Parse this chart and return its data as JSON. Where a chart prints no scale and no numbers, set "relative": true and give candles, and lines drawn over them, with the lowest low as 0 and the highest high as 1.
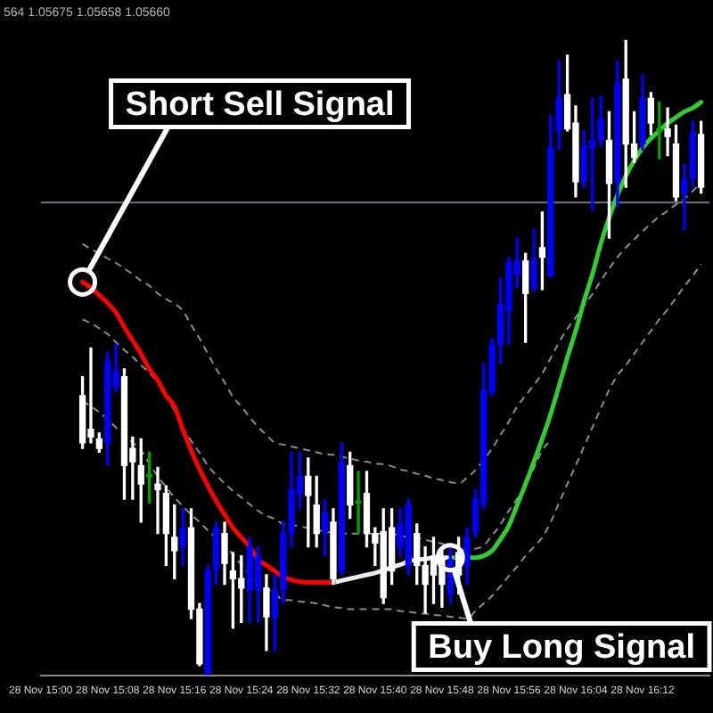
{
  "chart_data": {
    "type": "candlestick",
    "title": "564 1.05675 1.05658 1.05660",
    "relative": true,
    "x": [
      "--11-28T15:05",
      "--11-28T15:06",
      "--11-28T15:07",
      "--11-28T15:08",
      "--11-28T15:09",
      "--11-28T15:10",
      "--11-28T15:11",
      "--11-28T15:12",
      "--11-28T15:13",
      "--11-28T15:14",
      "--11-28T15:15",
      "--11-28T15:16",
      "--11-28T15:17",
      "--11-28T15:18",
      "--11-28T15:19",
      "--11-28T15:20",
      "--11-28T15:21",
      "--11-28T15:22",
      "--11-28T15:23",
      "--11-28T15:24",
      "--11-28T15:25",
      "--11-28T15:26",
      "--11-28T15:27",
      "--11-28T15:28",
      "--11-28T15:29",
      "--11-28T15:30",
      "--11-28T15:31",
      "--11-28T15:32",
      "--11-28T15:33",
      "--11-28T15:34",
      "--11-28T15:35",
      "--11-28T15:36",
      "--11-28T15:37",
      "--11-28T15:38",
      "--11-28T15:39",
      "--11-28T15:40",
      "--11-28T15:41",
      "--11-28T15:42",
      "--11-28T15:43",
      "--11-28T15:44",
      "--11-28T15:45",
      "--11-28T15:46",
      "--11-28T15:47",
      "--11-28T15:48",
      "--11-28T15:49",
      "--11-28T15:50",
      "--11-28T15:51",
      "--11-28T15:52",
      "--11-28T15:53",
      "--11-28T15:54",
      "--11-28T15:55",
      "--11-28T15:56",
      "--11-28T15:57",
      "--11-28T15:58",
      "--11-28T15:59",
      "--11-28T16:00",
      "--11-28T16:01",
      "--11-28T16:02",
      "--11-28T16:03",
      "--11-28T16:04",
      "--11-28T16:05",
      "--11-28T16:06",
      "--11-28T16:07",
      "--11-28T16:08",
      "--11-28T16:09",
      "--11-28T16:10",
      "--11-28T16:11",
      "--11-28T16:12",
      "--11-28T16:13",
      "--11-28T16:14",
      "--11-28T16:15",
      "--11-28T16:16",
      "--11-28T16:17",
      "--11-28T16:18",
      "--11-28T16:19"
    ],
    "ohlc": [
      [
        0.44,
        0.47,
        0.357,
        0.366
      ],
      [
        0.387,
        0.515,
        0.366,
        0.375
      ],
      [
        0.372,
        0.381,
        0.351,
        0.357
      ],
      [
        0.366,
        0.509,
        0.33,
        0.494
      ],
      [
        0.455,
        0.521,
        0.446,
        0.479
      ],
      [
        0.47,
        0.482,
        0.277,
        0.33
      ],
      [
        0.357,
        0.375,
        0.277,
        0.336
      ],
      [
        0.33,
        0.372,
        0.241,
        0.301
      ],
      [
        0.313,
        0.351,
        0.271,
        0.313
      ],
      [
        0.301,
        0.327,
        0.223,
        0.292
      ],
      [
        0.286,
        0.298,
        0.173,
        0.223
      ],
      [
        0.217,
        0.268,
        0.152,
        0.196
      ],
      [
        0.202,
        0.262,
        0.173,
        0.232
      ],
      [
        0.232,
        0.262,
        0.089,
        0.104
      ],
      [
        0.104,
        0.113,
        0.015,
        0.018
      ],
      [
        0.003,
        0.173,
        0,
        0.164
      ],
      [
        0.167,
        0.241,
        0.143,
        0.232
      ],
      [
        0.223,
        0.241,
        0.143,
        0.176
      ],
      [
        0.164,
        0.193,
        0.074,
        0.152
      ],
      [
        0.152,
        0.188,
        0.083,
        0.137
      ],
      [
        0.134,
        0.217,
        0.083,
        0.202
      ],
      [
        0.134,
        0.202,
        0.083,
        0.188
      ],
      [
        0.137,
        0.158,
        0.039,
        0.092
      ],
      [
        0.092,
        0.158,
        0.039,
        0.134
      ],
      [
        0.134,
        0.241,
        0.113,
        0.223
      ],
      [
        0.223,
        0.351,
        0.202,
        0.292
      ],
      [
        0.286,
        0.351,
        0.262,
        0.313
      ],
      [
        0.313,
        0.342,
        0.202,
        0.283
      ],
      [
        0.268,
        0.313,
        0.202,
        0.223
      ],
      [
        0.226,
        0.277,
        0.188,
        0.256
      ],
      [
        0.241,
        0.262,
        0.143,
        0.152
      ],
      [
        0.164,
        0.366,
        0.158,
        0.336
      ],
      [
        0.33,
        0.351,
        0.247,
        0.268
      ],
      [
        0.271,
        0.321,
        0.223,
        0.271
      ],
      [
        0.286,
        0.321,
        0.202,
        0.223
      ],
      [
        0.223,
        0.232,
        0.173,
        0.208
      ],
      [
        0.226,
        0.262,
        0.113,
        0.122
      ],
      [
        0.232,
        0.262,
        0.143,
        0.164
      ],
      [
        0.202,
        0.262,
        0.188,
        0.238
      ],
      [
        0.173,
        0.277,
        0.158,
        0.268
      ],
      [
        0.223,
        0.238,
        0.143,
        0.173
      ],
      [
        0.173,
        0.202,
        0.098,
        0.143
      ],
      [
        0.188,
        0.217,
        0.113,
        0.158
      ],
      [
        0.182,
        0.202,
        0.107,
        0.143
      ],
      [
        0.128,
        0.202,
        0.113,
        0.182
      ],
      [
        0.193,
        0.217,
        0.128,
        0.158
      ],
      [
        0.173,
        0.232,
        0.143,
        0.217
      ],
      [
        0.226,
        0.292,
        0.217,
        0.277
      ],
      [
        0.271,
        0.491,
        0.262,
        0.449
      ],
      [
        0.446,
        0.53,
        0.44,
        0.521
      ],
      [
        0.521,
        0.625,
        0.491,
        0.583
      ],
      [
        0.574,
        0.658,
        0.521,
        0.649
      ],
      [
        0.631,
        0.688,
        0.61,
        0.652
      ],
      [
        0.652,
        0.664,
        0.524,
        0.601
      ],
      [
        0.61,
        0.702,
        0.604,
        0.655
      ],
      [
        0.673,
        0.729,
        0.607,
        0.658
      ],
      [
        0.628,
        0.881,
        0.628,
        0.83
      ],
      [
        0.857,
        0.967,
        0.827,
        0.908
      ],
      [
        0.914,
        0.976,
        0.857,
        0.86
      ],
      [
        0.869,
        0.896,
        0.753,
        0.777
      ],
      [
        0.777,
        0.857,
        0.768,
        0.833
      ],
      [
        0.83,
        0.908,
        0.732,
        0.842
      ],
      [
        0.842,
        0.911,
        0.833,
        0.875
      ],
      [
        0.842,
        0.887,
        0.688,
        0.774
      ],
      [
        0.777,
        0.967,
        0.738,
        0.932
      ],
      [
        0.938,
        1,
        0.768,
        0.836
      ],
      [
        0.836,
        0.887,
        0.807,
        0.815
      ],
      [
        0.836,
        0.946,
        0.827,
        0.908
      ],
      [
        0.908,
        0.917,
        0.851,
        0.869
      ],
      [
        0.857,
        0.902,
        0.813,
        0.857
      ],
      [
        0.86,
        0.893,
        0.818,
        0.848
      ],
      [
        0.836,
        0.866,
        0.747,
        0.753
      ],
      [
        0.759,
        0.804,
        0.702,
        0.78
      ],
      [
        0.783,
        0.872,
        0.768,
        0.854
      ],
      [
        0.851,
        0.872,
        0.759,
        0.768
      ]
    ],
    "colors": [
      "#ffffff",
      "#ffffff",
      "#ffffff",
      "#0000ff",
      "#0000ff",
      "#ffffff",
      "#ffffff",
      "#ffffff",
      "#00a000",
      "#ffffff",
      "#ffffff",
      "#ffffff",
      "#0000ff",
      "#ffffff",
      "#ffffff",
      "#0000ff",
      "#0000ff",
      "#ffffff",
      "#ffffff",
      "#ffffff",
      "#0000ff",
      "#0000ff",
      "#ffffff",
      "#0000ff",
      "#0000ff",
      "#0000ff",
      "#0000ff",
      "#ffffff",
      "#ffffff",
      "#0000ff",
      "#ffffff",
      "#0000ff",
      "#ffffff",
      "#00a000",
      "#ffffff",
      "#ffffff",
      "#ffffff",
      "#ffffff",
      "#0000ff",
      "#0000ff",
      "#ffffff",
      "#ffffff",
      "#ffffff",
      "#ffffff",
      "#0000ff",
      "#ffffff",
      "#0000ff",
      "#0000ff",
      "#0000ff",
      "#0000ff",
      "#0000ff",
      "#0000ff",
      "#0000ff",
      "#ffffff",
      "#0000ff",
      "#ffffff",
      "#0000ff",
      "#0000ff",
      "#ffffff",
      "#ffffff",
      "#0000ff",
      "#0000ff",
      "#0000ff",
      "#ffffff",
      "#0000ff",
      "#ffffff",
      "#ffffff",
      "#0000ff",
      "#ffffff",
      "#00a000",
      "#ffffff",
      "#ffffff",
      "#0000ff",
      "#0000ff",
      "#ffffff"
    ],
    "series": [
      {
        "type": "line",
        "color": "#ff0000",
        "values": [
          0.619,
          0.61,
          0.598,
          0.586,
          0.571,
          0.548,
          0.527,
          0.506,
          0.482,
          0.464,
          0.44,
          0.423,
          0.387,
          0.354,
          0.324,
          0.298,
          0.274,
          0.253,
          0.232,
          0.217,
          0.202,
          0.182,
          0.173,
          0.164,
          0.155,
          0.15,
          0.147,
          0.146,
          0.146,
          0.146,
          0.146,
          null,
          null,
          null,
          null,
          null,
          null,
          null,
          null,
          null,
          null,
          null,
          null,
          null,
          null,
          null,
          null,
          null,
          null,
          null,
          null,
          null,
          null,
          null,
          null,
          null,
          null,
          null,
          null,
          null,
          null,
          null,
          null,
          null,
          null,
          null,
          null,
          null,
          null,
          null,
          null,
          null,
          null,
          null,
          null
        ]
      },
      {
        "type": "line",
        "color": "#ececec",
        "values": [
          null,
          null,
          null,
          null,
          null,
          null,
          null,
          null,
          null,
          null,
          null,
          null,
          null,
          null,
          null,
          null,
          null,
          null,
          null,
          null,
          null,
          null,
          null,
          null,
          null,
          null,
          null,
          null,
          null,
          null,
          0.146,
          0.149,
          0.152,
          0.155,
          0.158,
          0.161,
          0.165,
          0.17,
          0.174,
          0.179,
          0.182,
          0.183,
          0.185,
          0.185,
          0.185,
          null,
          null,
          null,
          null,
          null,
          null,
          null,
          null,
          null,
          null,
          null,
          null,
          null,
          null,
          null,
          null,
          null,
          null,
          null,
          null,
          null,
          null,
          null,
          null,
          null,
          null,
          null,
          null,
          null,
          null
        ]
      },
      {
        "type": "line",
        "color": "#33cc33",
        "values": [
          null,
          null,
          null,
          null,
          null,
          null,
          null,
          null,
          null,
          null,
          null,
          null,
          null,
          null,
          null,
          null,
          null,
          null,
          null,
          null,
          null,
          null,
          null,
          null,
          null,
          null,
          null,
          null,
          null,
          null,
          null,
          null,
          null,
          null,
          null,
          null,
          null,
          null,
          null,
          null,
          null,
          null,
          null,
          null,
          0.185,
          0.185,
          0.185,
          0.185,
          0.188,
          0.196,
          0.214,
          0.235,
          0.268,
          0.301,
          0.336,
          0.372,
          0.411,
          0.455,
          0.5,
          0.542,
          0.589,
          0.631,
          0.679,
          0.72,
          0.756,
          0.786,
          0.81,
          0.83,
          0.845,
          0.857,
          0.869,
          0.878,
          0.887,
          0.893,
          0.902
        ]
      },
      {
        "type": "line",
        "color": "#8c8c8c",
        "line_style": "dashed",
        "values": [
          0.679,
          0.671,
          0.664,
          0.656,
          0.649,
          0.64,
          0.631,
          0.621,
          0.613,
          0.601,
          0.592,
          0.585,
          0.574,
          0.551,
          0.53,
          0.506,
          0.482,
          0.461,
          0.438,
          0.423,
          0.406,
          0.391,
          0.378,
          0.366,
          0.363,
          0.36,
          0.357,
          0.354,
          0.351,
          0.348,
          0.347,
          0.344,
          0.341,
          0.338,
          0.336,
          0.333,
          0.332,
          0.329,
          0.324,
          0.321,
          0.317,
          0.314,
          0.31,
          0.307,
          0.304,
          0.302,
          0.311,
          0.323,
          0.339,
          0.357,
          0.378,
          0.399,
          0.423,
          0.44,
          0.457,
          0.475,
          0.499,
          0.524,
          0.545,
          0.563,
          0.582,
          0.6,
          0.621,
          0.64,
          0.658,
          0.673,
          0.686,
          0.699,
          0.711,
          0.722,
          0.731,
          0.741,
          0.75,
          0.762,
          0.775
        ]
      },
      {
        "type": "line",
        "color": "#8c8c8c",
        "line_style": "dashed",
        "values": [
          0.56,
          0.554,
          0.546,
          0.537,
          0.524,
          0.512,
          0.501,
          0.488,
          0.476,
          0.46,
          0.439,
          0.417,
          0.39,
          0.369,
          0.35,
          0.33,
          0.315,
          0.302,
          0.29,
          0.28,
          0.269,
          0.259,
          0.251,
          0.246,
          0.238,
          0.237,
          0.234,
          0.232,
          0.229,
          0.226,
          0.225,
          0.223,
          0.223,
          0.223,
          0.223,
          0.223,
          0.223,
          0.222,
          0.22,
          0.217,
          0.216,
          0.213,
          0.21,
          0.207,
          0.202,
          0.199,
          0.196,
          0.199,
          0.204,
          0.22,
          0.237,
          0.259,
          0.278,
          0.298,
          0.326,
          0.354,
          0.37,
          null,
          null,
          null,
          null,
          null,
          null,
          null,
          null,
          null,
          null,
          null,
          null,
          null,
          null,
          null,
          null,
          null,
          null
        ]
      },
      {
        "type": "line",
        "color": "#8c8c8c",
        "line_style": "dashed",
        "values": [
          0.432,
          0.423,
          0.414,
          0.403,
          0.39,
          0.378,
          0.366,
          0.354,
          0.333,
          0.313,
          0.296,
          0.28,
          0.266,
          0.253,
          0.241,
          0.228,
          0.216,
          0.205,
          0.19,
          0.174,
          0.158,
          0.146,
          0.137,
          0.128,
          0.119,
          0.118,
          0.116,
          0.115,
          0.113,
          0.11,
          0.107,
          0.106,
          0.104,
          0.104,
          0.104,
          0.104,
          0.104,
          0.104,
          0.101,
          0.1,
          0.098,
          0.097,
          0.095,
          0.094,
          0.092,
          0.091,
          0.089,
          0.101,
          0.113,
          0.125,
          0.14,
          0.156,
          0.171,
          0.188,
          0.202,
          0.217,
          0.241,
          0.271,
          0.301,
          0.33,
          0.36,
          0.39,
          0.42,
          0.449,
          0.472,
          0.488,
          0.506,
          0.524,
          0.542,
          0.56,
          0.576,
          0.594,
          0.612,
          0.629,
          0.647
        ]
      }
    ],
    "ref_lines": [
      {
        "axis": "y",
        "value": 0.744,
        "color": "#6e747c"
      }
    ],
    "annotations": [
      {
        "text": "Short Sell Signal",
        "x": "--11-28T15:05",
        "y": 0.619
      },
      {
        "text": "Buy Long Signal",
        "x": "--11-28T15:49",
        "y": 0.185
      }
    ],
    "xlim": [
      "--11-28T15:00",
      "--11-28T16:20"
    ],
    "xticks": [
      {
        "value": "--11-28T15:00",
        "label": "28 Nov 15:00"
      },
      {
        "value": "--11-28T15:08",
        "label": "28 Nov 15:08"
      },
      {
        "value": "--11-28T15:16",
        "label": "28 Nov 15:16"
      },
      {
        "value": "--11-28T15:24",
        "label": "28 Nov 15:24"
      },
      {
        "value": "--11-28T15:32",
        "label": "28 Nov 15:32"
      },
      {
        "value": "--11-28T15:40",
        "label": "28 Nov 15:40"
      },
      {
        "value": "--11-28T15:48",
        "label": "28 Nov 15:48"
      },
      {
        "value": "--11-28T15:56",
        "label": "28 Nov 15:56"
      },
      {
        "value": "--11-28T16:04",
        "label": "28 Nov 16:04"
      },
      {
        "value": "--11-28T16:12",
        "label": "28 Nov 16:12"
      }
    ],
    "grid": false,
    "legend": false,
    "marker": "none"
  }
}
